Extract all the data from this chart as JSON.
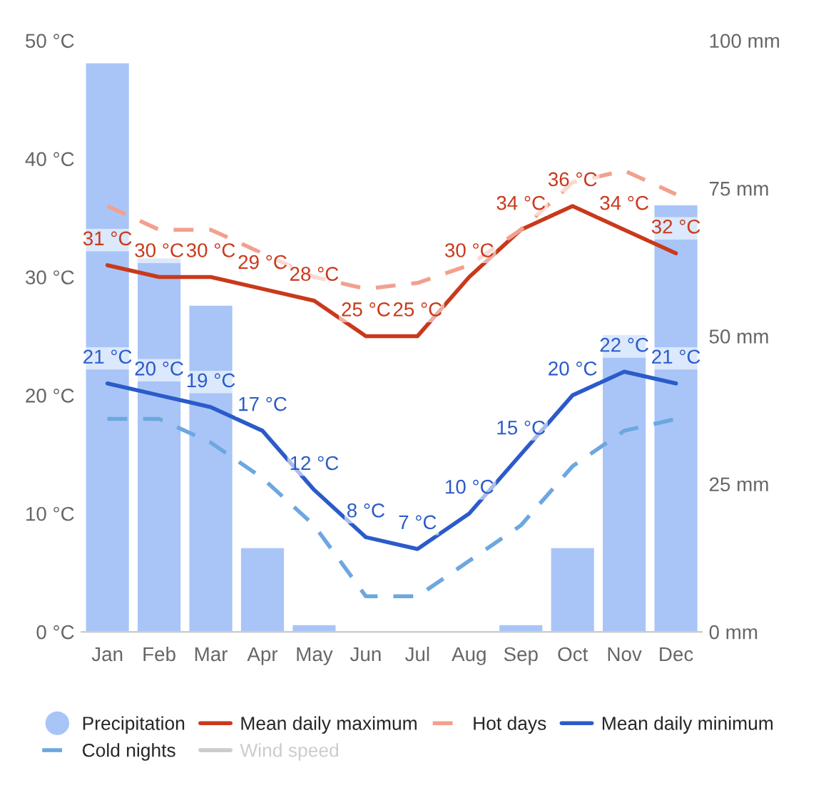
{
  "chart_data": {
    "type": "line",
    "categories": [
      "Jan",
      "Feb",
      "Mar",
      "Apr",
      "May",
      "Jun",
      "Jul",
      "Aug",
      "Sep",
      "Oct",
      "Nov",
      "Dec"
    ],
    "ylim": [
      0,
      50
    ],
    "yticks": [
      {
        "value": 0,
        "label": "0 °C"
      },
      {
        "value": 10,
        "label": "10 °C"
      },
      {
        "value": 20,
        "label": "20 °C"
      },
      {
        "value": 30,
        "label": "30 °C"
      },
      {
        "value": 40,
        "label": "40 °C"
      },
      {
        "value": 50,
        "label": "50 °C"
      }
    ],
    "y2lim": [
      0,
      100
    ],
    "y2ticks": [
      {
        "value": 0,
        "label": "0 mm"
      },
      {
        "value": 25,
        "label": "25 mm"
      },
      {
        "value": 50,
        "label": "50 mm"
      },
      {
        "value": 75,
        "label": "75 mm"
      },
      {
        "value": 100,
        "label": "100 mm"
      }
    ],
    "legend": "bottom",
    "grid": false,
    "series": [
      {
        "name": "Precipitation",
        "type": "bar",
        "axis": "y2",
        "color": "#a9c5f7",
        "values": [
          96,
          63,
          55,
          14,
          1,
          0,
          0,
          0,
          1,
          14,
          50,
          72
        ]
      },
      {
        "name": "Mean daily maximum",
        "color": "#c9391b",
        "line_style": "solid",
        "values": [
          31,
          30,
          30,
          29,
          28,
          25,
          25,
          30,
          34,
          36,
          34,
          32
        ],
        "value_labels": [
          "31 °C",
          "30 °C",
          "30 °C",
          "29 °C",
          "28 °C",
          "25 °C",
          "25 °C",
          "30 °C",
          "34 °C",
          "36 °C",
          "34 °C",
          "32 °C"
        ]
      },
      {
        "name": "Hot days",
        "color": "#f2a08e",
        "line_style": "dashed",
        "values": [
          36,
          34,
          34,
          32,
          30,
          29,
          29.5,
          31,
          34,
          38,
          39,
          37
        ]
      },
      {
        "name": "Mean daily minimum",
        "color": "#2b5bc9",
        "line_style": "solid",
        "values": [
          21,
          20,
          19,
          17,
          12,
          8,
          7,
          10,
          15,
          20,
          22,
          21
        ],
        "value_labels": [
          "21 °C",
          "20 °C",
          "19 °C",
          "17 °C",
          "12 °C",
          "8 °C",
          "7 °C",
          "10 °C",
          "15 °C",
          "20 °C",
          "22 °C",
          "21 °C"
        ]
      },
      {
        "name": "Cold nights",
        "color": "#6da7e0",
        "line_style": "dashed",
        "values": [
          18,
          18,
          16,
          13,
          9,
          3,
          3,
          6,
          9,
          14,
          17,
          18
        ]
      },
      {
        "name": "Wind speed",
        "color": "#cccccc",
        "line_style": "solid",
        "values": [
          null,
          null,
          null,
          null,
          null,
          null,
          null,
          null,
          null,
          null,
          null,
          null
        ]
      }
    ]
  }
}
